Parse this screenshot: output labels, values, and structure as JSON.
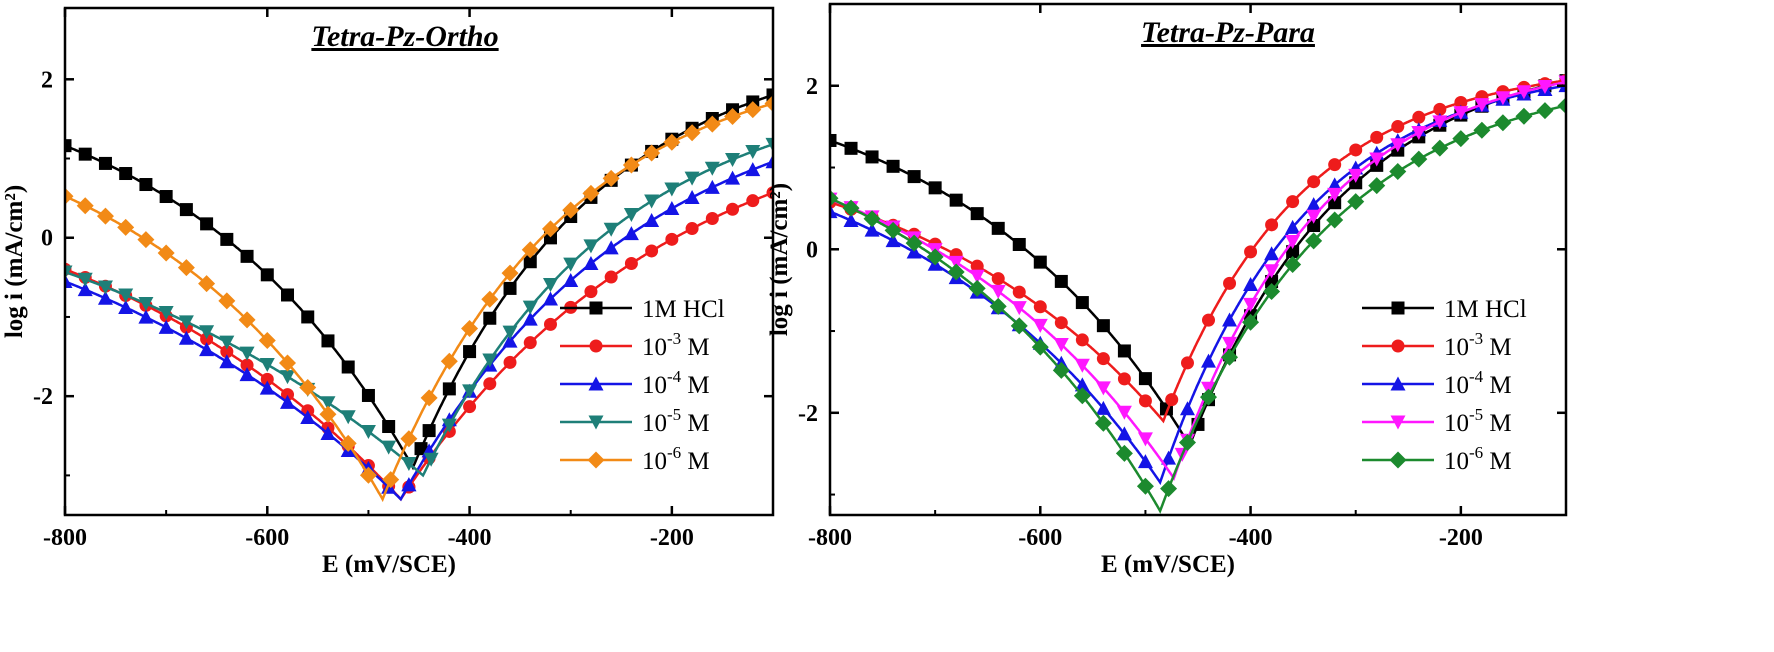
{
  "chart_data": [
    {
      "type": "line",
      "title": "Tetra-Pz-Ortho",
      "xlabel": "E (mV/SCE)",
      "ylabel": "log i (mA/cm²)",
      "xlim": [
        -800,
        -100
      ],
      "ylim": [
        -3.5,
        2.9
      ],
      "x_ticks": [
        -800,
        -600,
        -400,
        -200
      ],
      "y_ticks": [
        -2,
        0,
        2
      ],
      "x_tick_labels": [
        "-800",
        "-600",
        "-400",
        "-200"
      ],
      "y_tick_labels": [
        "-2",
        "0",
        "2"
      ],
      "grid": false,
      "legend_position": "bottom-right",
      "series": [
        {
          "name": "1M HCl",
          "base": "1M HCl",
          "exp": "",
          "unit": "",
          "color": "#000000",
          "marker": "square",
          "ecorr": -456,
          "ilow": -2.9,
          "a_anodic": 2.55,
          "b_anodic": 0.0062,
          "a_cathodic": 2.35,
          "b_cathodic": 0.0048
        },
        {
          "name": "10-3 M",
          "base": "10",
          "exp": "-3",
          "unit": " M",
          "color": "#ee1c1c",
          "marker": "circle",
          "ecorr": -468,
          "ilow": -3.3,
          "a_anodic": 1.85,
          "b_anodic": 0.0042,
          "a_cathodic": 1.25,
          "b_cathodic": 0.0034
        },
        {
          "name": "10-4 M",
          "base": "10",
          "exp": "-4",
          "unit": " M",
          "color": "#1414e6",
          "marker": "triangle-up",
          "ecorr": -468,
          "ilow": -3.3,
          "a_anodic": 2.05,
          "b_anodic": 0.0048,
          "a_cathodic": 1.25,
          "b_cathodic": 0.0031
        },
        {
          "name": "10-5 M",
          "base": "10",
          "exp": "-5",
          "unit": " M",
          "color": "#1e7f78",
          "marker": "triangle-down",
          "ecorr": -446,
          "ilow": -3.0,
          "a_anodic": 2.0,
          "b_anodic": 0.0058,
          "a_cathodic": 1.35,
          "b_cathodic": 0.0028
        },
        {
          "name": "10-6 M",
          "base": "10",
          "exp": "-6",
          "unit": " M",
          "color": "#f28a16",
          "marker": "diamond",
          "ecorr": -486,
          "ilow": -3.3,
          "a_anodic": 2.35,
          "b_anodic": 0.0062,
          "a_cathodic": 1.85,
          "b_cathodic": 0.0048
        }
      ]
    },
    {
      "type": "line",
      "title": "Tetra-Pz-Para",
      "xlabel": "E (mV/SCE)",
      "ylabel": "log i (mA/cm²)",
      "xlim": [
        -800,
        -100
      ],
      "ylim": [
        -3.25,
        3.0
      ],
      "x_ticks": [
        -800,
        -600,
        -400,
        -200
      ],
      "y_ticks": [
        -2,
        0,
        2
      ],
      "x_tick_labels": [
        "-800",
        "-600",
        "-400",
        "-200"
      ],
      "y_tick_labels": [
        "-2",
        "0",
        "2"
      ],
      "grid": false,
      "legend_position": "bottom-right",
      "series": [
        {
          "name": "1M HCl",
          "base": "1M HCl",
          "exp": "",
          "unit": "",
          "color": "#000000",
          "marker": "square",
          "ecorr": -458,
          "ilow": -2.4,
          "a_anodic": 2.5,
          "b_anodic": 0.0075,
          "a_cathodic": 2.35,
          "b_cathodic": 0.005
        },
        {
          "name": "10-3 M",
          "base": "10",
          "exp": "-3",
          "unit": " M",
          "color": "#ee1c1c",
          "marker": "circle",
          "ecorr": -483,
          "ilow": -2.1,
          "a_anodic": 2.3,
          "b_anodic": 0.0085,
          "a_cathodic": 1.6,
          "b_cathodic": 0.0045
        },
        {
          "name": "10-4 M",
          "base": "10",
          "exp": "-4",
          "unit": " M",
          "color": "#1414e6",
          "marker": "triangle-up",
          "ecorr": -486,
          "ilow": -2.85,
          "a_anodic": 2.3,
          "b_anodic": 0.0082,
          "a_cathodic": 1.75,
          "b_cathodic": 0.0045
        },
        {
          "name": "10-5 M",
          "base": "10",
          "exp": "-5",
          "unit": " M",
          "color": "#ff17ff",
          "marker": "triangle-down",
          "ecorr": -473,
          "ilow": -2.8,
          "a_anodic": 2.4,
          "b_anodic": 0.008,
          "a_cathodic": 1.85,
          "b_cathodic": 0.0045
        },
        {
          "name": "10-6 M",
          "base": "10",
          "exp": "-6",
          "unit": " M",
          "color": "#1c8a2e",
          "marker": "diamond",
          "ecorr": -486,
          "ilow": -3.2,
          "a_anodic": 2.2,
          "b_anodic": 0.0072,
          "a_cathodic": 1.95,
          "b_cathodic": 0.0048
        }
      ]
    }
  ]
}
